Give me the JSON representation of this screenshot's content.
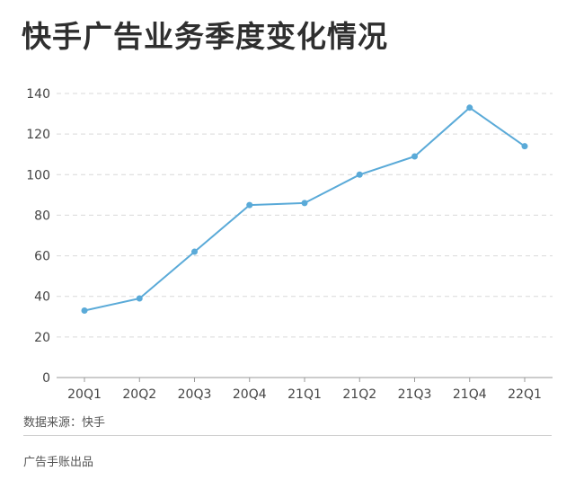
{
  "page": {
    "title": "快手广告业务季度变化情况",
    "source": "数据来源：快手",
    "credit": "广告手账出品"
  },
  "chart_data": {
    "type": "line",
    "title": "快手广告业务季度变化情况",
    "categories": [
      "20Q1",
      "20Q2",
      "20Q3",
      "20Q4",
      "21Q1",
      "21Q2",
      "21Q3",
      "21Q4",
      "22Q1"
    ],
    "series": [
      {
        "values": [
          33,
          39,
          62,
          85,
          86,
          100,
          109,
          133,
          114
        ],
        "color": "#5aaad8"
      }
    ],
    "yticks": [
      0,
      20,
      40,
      60,
      80,
      100,
      120,
      140
    ],
    "ylim": [
      0,
      140
    ],
    "xlabel": "",
    "ylabel": "",
    "grid": "horizontal dashed",
    "legend": "none"
  }
}
